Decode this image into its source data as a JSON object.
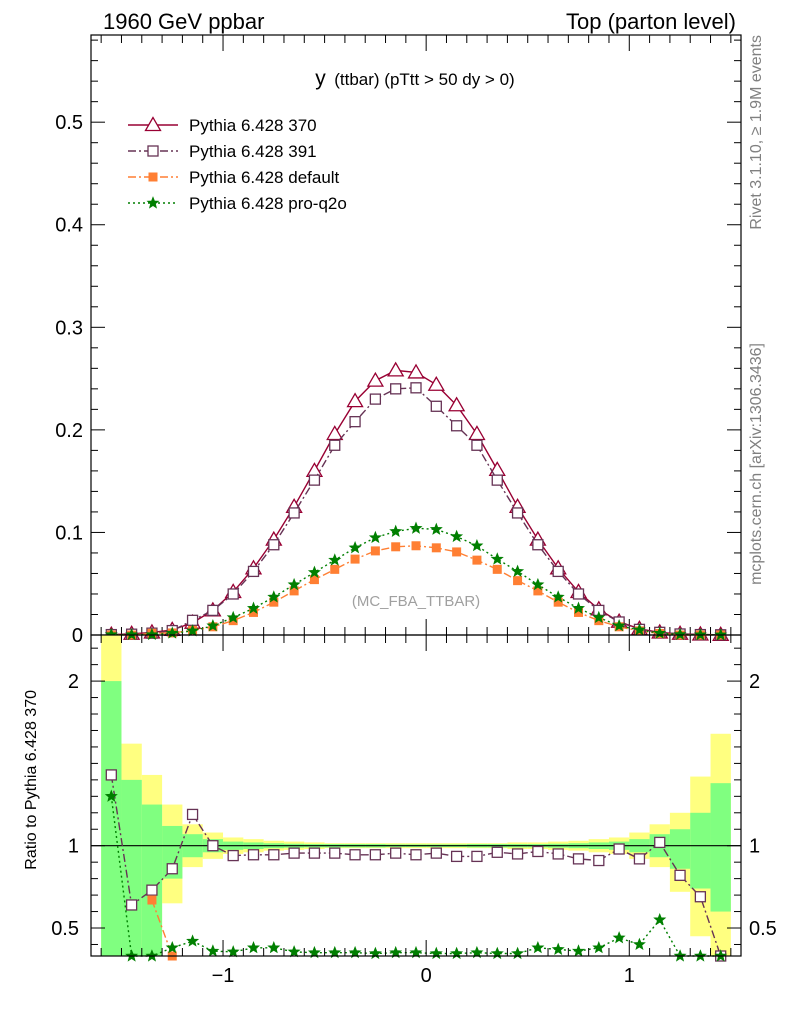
{
  "header": {
    "left_title": "1960 GeV ppbar",
    "right_title": "Top (parton level)"
  },
  "side_labels": {
    "rivet": "Rivet 3.1.10, ≥ 1.9M events",
    "mcplots": "mcplots.cern.ch [arXiv:1306.3436]"
  },
  "chart_data": [
    {
      "type": "line",
      "title": "y (ttbar) (pTtt > 50 dy > 0)",
      "title_main": "y",
      "title_rest": "(ttbar) (pTtt > 50 dy > 0)",
      "watermark": "(MC_FBA_TTBAR)",
      "xlabel": "",
      "ylabel": "",
      "xlim": [
        -1.65,
        1.55
      ],
      "ylim": [
        0,
        0.585
      ],
      "y_ticks": [
        0,
        0.1,
        0.2,
        0.3,
        0.4,
        0.5
      ],
      "y_tick_labels": [
        "0",
        "0.1",
        "0.2",
        "0.3",
        "0.4",
        "0.5"
      ],
      "x": [
        -1.55,
        -1.45,
        -1.35,
        -1.25,
        -1.15,
        -1.05,
        -0.95,
        -0.85,
        -0.75,
        -0.65,
        -0.55,
        -0.45,
        -0.35,
        -0.25,
        -0.15,
        -0.05,
        0.05,
        0.15,
        0.25,
        0.35,
        0.45,
        0.55,
        0.65,
        0.75,
        0.85,
        0.95,
        1.05,
        1.15,
        1.25,
        1.35,
        1.45
      ],
      "series": [
        {
          "name": "Pythia 6.428 370",
          "color": "#990033",
          "marker": "triangle",
          "line": "solid",
          "values": [
            0.0003,
            0.0012,
            0.0025,
            0.005,
            0.012,
            0.024,
            0.042,
            0.065,
            0.093,
            0.125,
            0.16,
            0.196,
            0.228,
            0.248,
            0.258,
            0.256,
            0.244,
            0.224,
            0.196,
            0.161,
            0.125,
            0.093,
            0.065,
            0.042,
            0.025,
            0.013,
            0.006,
            0.0025,
            0.0012,
            0.0005,
            0.0002
          ]
        },
        {
          "name": "Pythia 6.428 391",
          "color": "#663355",
          "marker": "square-open",
          "line": "dashdot",
          "values": [
            0.0004,
            0.0008,
            0.0018,
            0.0043,
            0.0143,
            0.024,
            0.04,
            0.062,
            0.088,
            0.119,
            0.151,
            0.185,
            0.208,
            0.23,
            0.24,
            0.241,
            0.223,
            0.204,
            0.185,
            0.151,
            0.119,
            0.088,
            0.062,
            0.04,
            0.024,
            0.0127,
            0.0055,
            0.0026,
            0.001,
            0.0004,
            0.0002
          ]
        },
        {
          "name": "Pythia 6.428 default",
          "color": "#ff7f33",
          "marker": "square-filled",
          "line": "dashdot",
          "values": [
            0.0,
            0.0,
            0.0017,
            0.002,
            0.0045,
            0.008,
            0.014,
            0.022,
            0.032,
            0.043,
            0.054,
            0.064,
            0.074,
            0.082,
            0.086,
            0.087,
            0.085,
            0.081,
            0.073,
            0.064,
            0.053,
            0.043,
            0.032,
            0.022,
            0.014,
            0.008,
            0.004,
            0.0015,
            0.0,
            0.0,
            0.0
          ]
        },
        {
          "name": "Pythia 6.428 pro-q2o",
          "color": "#007f00",
          "marker": "star",
          "line": "dotted",
          "values": [
            0.0004,
            0.0003,
            0.0004,
            0.0018,
            0.004,
            0.009,
            0.017,
            0.026,
            0.037,
            0.049,
            0.061,
            0.073,
            0.085,
            0.095,
            0.101,
            0.104,
            0.103,
            0.096,
            0.087,
            0.074,
            0.062,
            0.049,
            0.037,
            0.026,
            0.017,
            0.009,
            0.005,
            0.0017,
            0.0005,
            0.0002,
            0.0001
          ]
        }
      ]
    },
    {
      "type": "line",
      "title": "",
      "ylabel": "Ratio to Pythia 6.428 370",
      "xlabel": "",
      "xlim": [
        -1.65,
        1.55
      ],
      "ylim": [
        0.33,
        2.28
      ],
      "x_ticks": [
        -1,
        0,
        1
      ],
      "x_tick_labels": [
        "−1",
        "0",
        "1"
      ],
      "y_ticks": [
        0.5,
        1,
        2
      ],
      "y_tick_labels": [
        "0.5",
        "1",
        "2"
      ],
      "reference_line": 1,
      "band_edges": [
        -1.6,
        -1.5,
        -1.4,
        -1.3,
        -1.2,
        -1.1,
        -1.0,
        -0.9,
        -0.8,
        -0.7,
        -0.6,
        -0.5,
        -0.4,
        -0.3,
        -0.2,
        -0.1,
        0.0,
        0.1,
        0.2,
        0.3,
        0.4,
        0.5,
        0.6,
        0.7,
        0.8,
        0.9,
        1.0,
        1.1,
        1.2,
        1.3,
        1.4,
        1.5
      ],
      "band_yellow": [
        [
          0.33,
          2.28
        ],
        [
          0.33,
          1.62
        ],
        [
          0.33,
          1.43
        ],
        [
          0.65,
          1.25
        ],
        [
          0.87,
          1.13
        ],
        [
          0.92,
          1.08
        ],
        [
          0.95,
          1.05
        ],
        [
          0.96,
          1.04
        ],
        [
          0.97,
          1.03
        ],
        [
          0.975,
          1.025
        ],
        [
          0.98,
          1.02
        ],
        [
          0.985,
          1.015
        ],
        [
          0.985,
          1.015
        ],
        [
          0.985,
          1.015
        ],
        [
          0.985,
          1.015
        ],
        [
          0.985,
          1.015
        ],
        [
          0.985,
          1.015
        ],
        [
          0.985,
          1.015
        ],
        [
          0.985,
          1.015
        ],
        [
          0.985,
          1.015
        ],
        [
          0.98,
          1.02
        ],
        [
          0.98,
          1.02
        ],
        [
          0.975,
          1.025
        ],
        [
          0.97,
          1.03
        ],
        [
          0.96,
          1.04
        ],
        [
          0.95,
          1.05
        ],
        [
          0.92,
          1.08
        ],
        [
          0.87,
          1.13
        ],
        [
          0.72,
          1.2
        ],
        [
          0.45,
          1.42
        ],
        [
          0.33,
          1.68
        ]
      ],
      "band_green": [
        [
          0.33,
          2.0
        ],
        [
          0.33,
          1.4
        ],
        [
          0.33,
          1.25
        ],
        [
          0.8,
          1.12
        ],
        [
          0.93,
          1.07
        ],
        [
          0.96,
          1.04
        ],
        [
          0.975,
          1.025
        ],
        [
          0.98,
          1.02
        ],
        [
          0.985,
          1.015
        ],
        [
          0.988,
          1.012
        ],
        [
          0.99,
          1.01
        ],
        [
          0.99,
          1.01
        ],
        [
          0.99,
          1.01
        ],
        [
          0.99,
          1.01
        ],
        [
          0.992,
          1.008
        ],
        [
          0.992,
          1.008
        ],
        [
          0.992,
          1.008
        ],
        [
          0.992,
          1.008
        ],
        [
          0.99,
          1.01
        ],
        [
          0.99,
          1.01
        ],
        [
          0.99,
          1.01
        ],
        [
          0.99,
          1.01
        ],
        [
          0.988,
          1.012
        ],
        [
          0.985,
          1.015
        ],
        [
          0.98,
          1.02
        ],
        [
          0.975,
          1.025
        ],
        [
          0.96,
          1.04
        ],
        [
          0.93,
          1.07
        ],
        [
          0.86,
          1.1
        ],
        [
          0.74,
          1.2
        ],
        [
          0.6,
          1.38
        ]
      ],
      "x": [
        -1.55,
        -1.45,
        -1.35,
        -1.25,
        -1.15,
        -1.05,
        -0.95,
        -0.85,
        -0.75,
        -0.65,
        -0.55,
        -0.45,
        -0.35,
        -0.25,
        -0.15,
        -0.05,
        0.05,
        0.15,
        0.25,
        0.35,
        0.45,
        0.55,
        0.65,
        0.75,
        0.85,
        0.95,
        1.05,
        1.15,
        1.25,
        1.35,
        1.45
      ],
      "series": [
        {
          "name": "Pythia 6.428 391",
          "color": "#663355",
          "marker": "square-open",
          "line": "dashdot",
          "values": [
            1.43,
            0.64,
            0.73,
            0.86,
            1.19,
            1.0,
            0.94,
            0.945,
            0.945,
            0.955,
            0.955,
            0.955,
            0.945,
            0.945,
            0.955,
            0.945,
            0.955,
            0.935,
            0.935,
            0.96,
            0.95,
            0.965,
            0.95,
            0.92,
            0.91,
            0.98,
            0.92,
            1.02,
            0.82,
            0.69,
            0.33
          ]
        },
        {
          "name": "Pythia 6.428 default",
          "color": "#ff7f33",
          "marker": "square-filled",
          "line": "dashdot",
          "values": [
            null,
            null,
            0.67,
            0.33,
            null,
            null,
            null,
            null,
            null,
            null,
            null,
            null,
            null,
            null,
            null,
            null,
            null,
            null,
            null,
            null,
            null,
            null,
            null,
            null,
            null,
            null,
            null,
            null,
            null,
            null,
            null
          ]
        },
        {
          "name": "Pythia 6.428 pro-q2o",
          "color": "#007f00",
          "marker": "star",
          "line": "dotted",
          "values": [
            1.3,
            0.33,
            0.33,
            0.38,
            0.42,
            0.36,
            0.355,
            0.38,
            0.38,
            0.355,
            0.35,
            0.35,
            0.35,
            0.345,
            0.35,
            0.35,
            0.345,
            0.345,
            0.35,
            0.345,
            0.345,
            0.38,
            0.37,
            0.36,
            0.38,
            0.44,
            0.4,
            0.55,
            0.33,
            0.33,
            0.33
          ]
        }
      ]
    }
  ]
}
